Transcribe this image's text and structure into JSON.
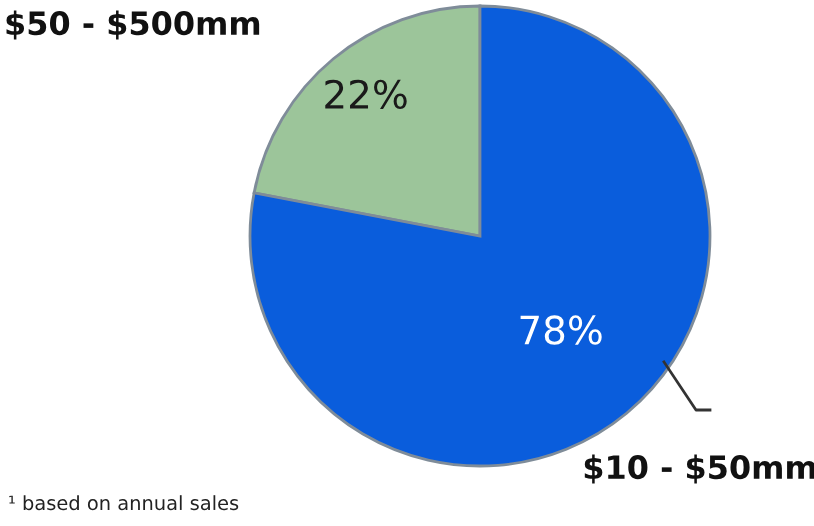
{
  "chart_data": {
    "type": "pie",
    "categories": [
      "$50 - $500mm",
      "$10 - $50mm"
    ],
    "values": [
      22,
      78
    ],
    "colors": [
      "#9cc59a",
      "#0a5ddc"
    ],
    "value_labels": [
      "22%",
      "78%"
    ],
    "annotations": [
      "¹ based on annual sales"
    ]
  }
}
